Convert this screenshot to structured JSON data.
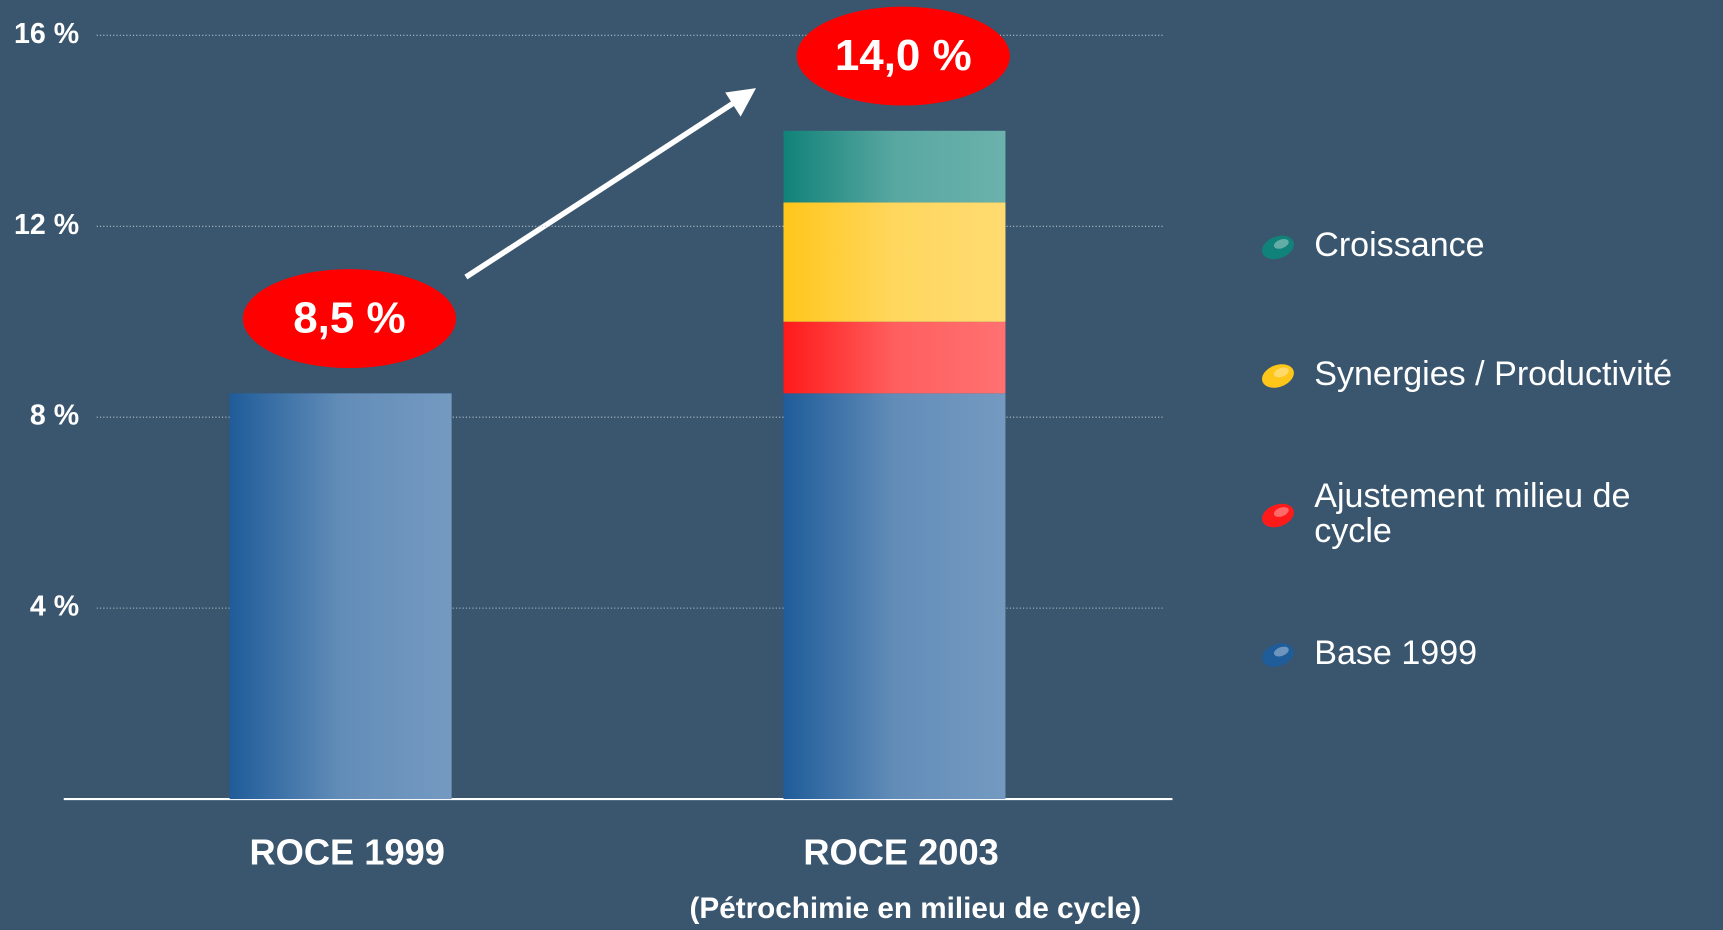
{
  "chart_data": {
    "type": "stacked-bar",
    "categories": [
      "ROCE 1999",
      "ROCE 2003"
    ],
    "annotations": [
      "(Pétrochimie en milieu de cycle)"
    ],
    "series": [
      {
        "name": "Base 1999",
        "color": "#1f5c9a",
        "values": [
          8.5,
          8.5
        ]
      },
      {
        "name": "Ajustement milieu de cycle",
        "color": "#ff1a1a",
        "values": [
          null,
          1.5
        ]
      },
      {
        "name": "Synergies / Productivité",
        "color": "#ffc61a",
        "values": [
          null,
          2.5
        ]
      },
      {
        "name": "Croissance",
        "color": "#118279",
        "values": [
          null,
          1.5
        ]
      }
    ],
    "totals": [
      8.5,
      14.0
    ],
    "total_labels": [
      "8,5 %",
      "14,0 %"
    ],
    "ylim": [
      0,
      16
    ],
    "yticks": [
      {
        "value": 4,
        "label": "4 %"
      },
      {
        "value": 8,
        "label": "8 %"
      },
      {
        "value": 12,
        "label": "12 %"
      },
      {
        "value": 16,
        "label": "16 %"
      }
    ],
    "grid": true,
    "legend": "right"
  }
}
